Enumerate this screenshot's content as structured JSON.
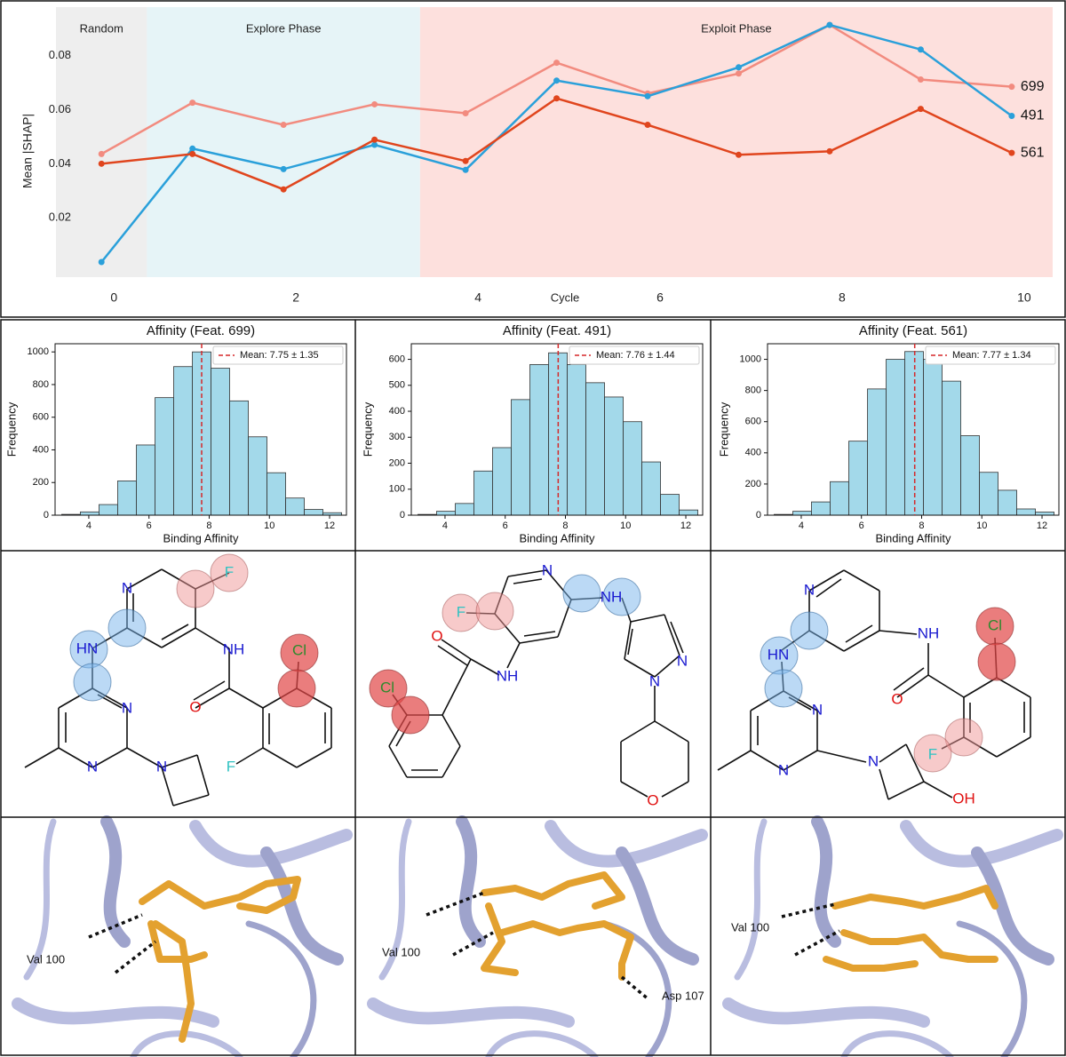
{
  "chart_data": [
    {
      "type": "line",
      "ylabel": "Mean |SHAP|",
      "xlabel": "Cycle",
      "x": [
        0,
        1,
        2,
        3,
        4,
        5,
        6,
        7,
        8,
        9,
        10
      ],
      "series": [
        {
          "name": "699",
          "color": "#f28b7f",
          "values": [
            0.0436,
            0.0626,
            0.0544,
            0.062,
            0.0587,
            0.0774,
            0.066,
            0.0734,
            0.0914,
            0.0712,
            0.0685
          ]
        },
        {
          "name": "491",
          "color": "#2aa0da",
          "values": [
            0.0036,
            0.0456,
            0.038,
            0.047,
            0.0377,
            0.0708,
            0.065,
            0.0757,
            0.0914,
            0.0823,
            0.0577
          ]
        },
        {
          "name": "561",
          "color": "#e0451d",
          "values": [
            0.04,
            0.0436,
            0.0305,
            0.0489,
            0.041,
            0.0642,
            0.0544,
            0.0433,
            0.0446,
            0.0603,
            0.044
          ]
        }
      ],
      "regions": [
        {
          "label": "Random",
          "start": -0.5,
          "end": 0.5,
          "color": "#eeeeee"
        },
        {
          "label": "Explore Phase",
          "start": 0.5,
          "end": 3.5,
          "color": "#e6f4f7"
        },
        {
          "label": "Exploit Phase",
          "start": 3.5,
          "end": 10.45,
          "color": "#fde0dd"
        }
      ],
      "xlim": [
        -0.5,
        10.45
      ],
      "ylim": [
        -0.002,
        0.098
      ],
      "xticks": [
        0,
        2,
        4,
        6,
        8,
        10
      ],
      "yticks": [
        0.02,
        0.04,
        0.06,
        0.08
      ],
      "grid": false
    },
    {
      "type": "histogram",
      "title": "Affinity (Feat. 699)",
      "xlabel": "Binding Affinity",
      "ylabel": "Frequency",
      "bins": [
        3.1,
        3.72,
        4.34,
        4.96,
        5.58,
        6.2,
        6.82,
        7.44,
        8.06,
        8.68,
        9.3,
        9.92,
        10.54,
        11.16,
        11.78,
        12.4
      ],
      "values": [
        5,
        20,
        65,
        210,
        430,
        720,
        910,
        1000,
        900,
        700,
        480,
        260,
        105,
        35,
        15
      ],
      "color": "#a3d9ea",
      "edgecolor": "#333333",
      "mean": 7.75,
      "mean_label": "Mean: 7.75 ± 1.35",
      "mean_color": "#d62728",
      "xlim": [
        2.88,
        12.56
      ],
      "ylim": [
        0,
        1050
      ],
      "xticks": [
        4,
        6,
        8,
        10,
        12
      ],
      "yticks": [
        0,
        200,
        400,
        600,
        800,
        1000
      ]
    },
    {
      "type": "histogram",
      "title": "Affinity (Feat. 491)",
      "xlabel": "Binding Affinity",
      "ylabel": "Frequency",
      "bins": [
        3.1,
        3.72,
        4.34,
        4.96,
        5.58,
        6.2,
        6.82,
        7.44,
        8.06,
        8.68,
        9.3,
        9.92,
        10.54,
        11.16,
        11.78,
        12.4
      ],
      "values": [
        3,
        15,
        45,
        170,
        260,
        445,
        580,
        625,
        580,
        510,
        455,
        360,
        205,
        80,
        20
      ],
      "color": "#a3d9ea",
      "edgecolor": "#333333",
      "mean": 7.76,
      "mean_label": "Mean: 7.76 ± 1.44",
      "mean_color": "#d62728",
      "xlim": [
        2.88,
        12.56
      ],
      "ylim": [
        0,
        660
      ],
      "xticks": [
        4,
        6,
        8,
        10,
        12
      ],
      "yticks": [
        0,
        100,
        200,
        300,
        400,
        500,
        600
      ]
    },
    {
      "type": "histogram",
      "title": "Affinity (Feat. 561)",
      "xlabel": "Binding Affinity",
      "ylabel": "Frequency",
      "bins": [
        3.1,
        3.72,
        4.34,
        4.96,
        5.58,
        6.2,
        6.82,
        7.44,
        8.06,
        8.68,
        9.3,
        9.92,
        10.54,
        11.16,
        11.78,
        12.4
      ],
      "values": [
        5,
        25,
        85,
        215,
        475,
        810,
        1000,
        1050,
        1000,
        860,
        510,
        275,
        160,
        40,
        20
      ],
      "color": "#a3d9ea",
      "edgecolor": "#333333",
      "mean": 7.77,
      "mean_label": "Mean: 7.77 ± 1.34",
      "mean_color": "#d62728",
      "xlim": [
        2.88,
        12.56
      ],
      "ylim": [
        0,
        1100
      ],
      "xticks": [
        4,
        6,
        8,
        10,
        12
      ],
      "yticks": [
        0,
        200,
        400,
        600,
        800,
        1000
      ]
    }
  ],
  "molecules": [
    {
      "atoms": [
        "N",
        "F",
        "HN",
        "NH",
        "N",
        "N",
        "N",
        "O",
        "Cl",
        "F"
      ]
    },
    {
      "atoms": [
        "N",
        "F",
        "NH",
        "O",
        "NH",
        "Cl",
        "N",
        "N",
        "O"
      ]
    },
    {
      "atoms": [
        "N",
        "HN",
        "NH",
        "N",
        "N",
        "N",
        "O",
        "Cl",
        "F",
        "OH"
      ]
    }
  ],
  "structures": [
    {
      "labels": [
        "Val 100"
      ]
    },
    {
      "labels": [
        "Val 100",
        "Asp 107"
      ]
    },
    {
      "labels": [
        "Val 100"
      ]
    }
  ]
}
